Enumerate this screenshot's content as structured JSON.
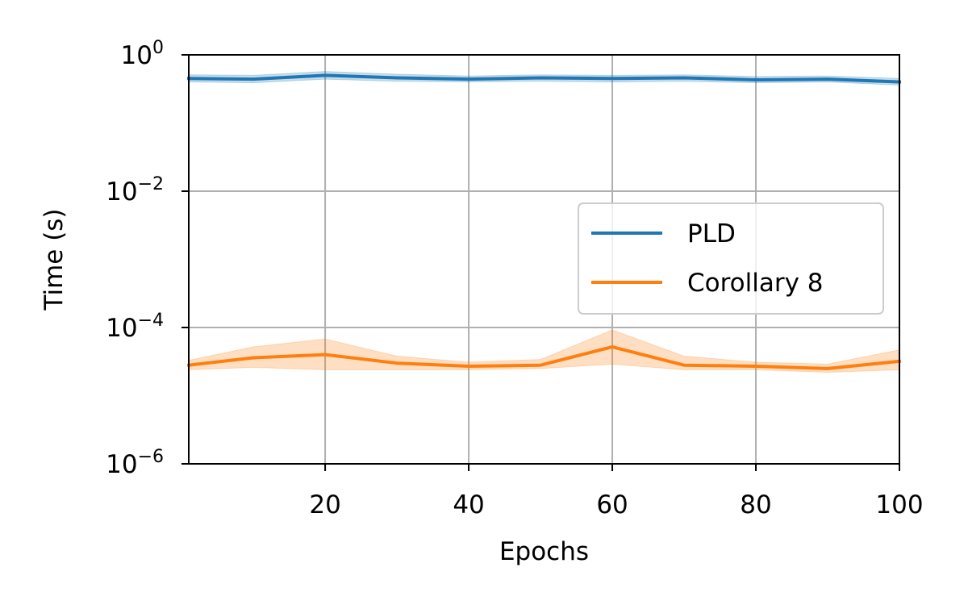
{
  "chart_data": {
    "type": "line",
    "title": "",
    "xlabel": "Epochs",
    "ylabel": "Time (s)",
    "y_scale": "log",
    "xlim": [
      1,
      100
    ],
    "ylim": [
      1e-06,
      1
    ],
    "x_ticks": [
      {
        "value": 20,
        "label": "20"
      },
      {
        "value": 40,
        "label": "40"
      },
      {
        "value": 60,
        "label": "60"
      },
      {
        "value": 80,
        "label": "80"
      },
      {
        "value": 100,
        "label": "100"
      }
    ],
    "y_ticks": [
      {
        "value": 1,
        "base": "10",
        "exp": "0"
      },
      {
        "value": 0.01,
        "base": "10",
        "exp": "−2"
      },
      {
        "value": 0.0001,
        "base": "10",
        "exp": "−4"
      },
      {
        "value": 1e-06,
        "base": "10",
        "exp": "−6"
      }
    ],
    "grid": true,
    "legend_position": "center-right",
    "x": [
      1,
      10,
      20,
      30,
      40,
      50,
      60,
      70,
      80,
      90,
      100
    ],
    "series": [
      {
        "name": "PLD",
        "color": "#1f77b4",
        "values": [
          0.45,
          0.44,
          0.5,
          0.46,
          0.44,
          0.46,
          0.45,
          0.46,
          0.43,
          0.44,
          0.4
        ],
        "lower": [
          0.4,
          0.39,
          0.44,
          0.41,
          0.4,
          0.41,
          0.4,
          0.41,
          0.39,
          0.4,
          0.36
        ],
        "upper": [
          0.51,
          0.5,
          0.57,
          0.52,
          0.49,
          0.51,
          0.5,
          0.51,
          0.48,
          0.49,
          0.45
        ]
      },
      {
        "name": "Corollary 8",
        "color": "#ff7f0e",
        "values": [
          2.8e-05,
          3.6e-05,
          4e-05,
          3e-05,
          2.7e-05,
          2.8e-05,
          5.2e-05,
          2.8e-05,
          2.7e-05,
          2.5e-05,
          3.2e-05
        ],
        "lower": [
          2.4e-05,
          2.6e-05,
          2.4e-05,
          2.4e-05,
          2.4e-05,
          2.5e-05,
          2.9e-05,
          2.4e-05,
          2.4e-05,
          2.2e-05,
          2.4e-05
        ],
        "upper": [
          3.3e-05,
          5.2e-05,
          6.8e-05,
          3.8e-05,
          3.1e-05,
          3.4e-05,
          9.2e-05,
          3.8e-05,
          3.1e-05,
          2.9e-05,
          4.7e-05
        ]
      }
    ]
  }
}
